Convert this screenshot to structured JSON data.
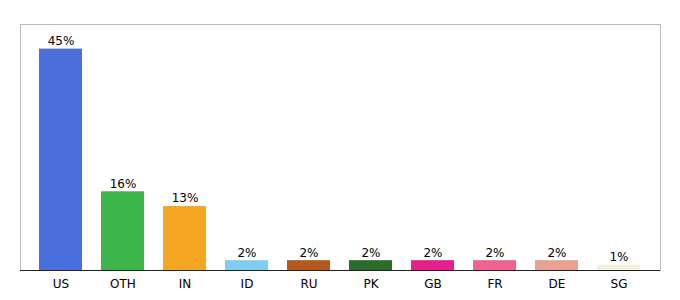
{
  "chart_data": {
    "type": "bar",
    "categories": [
      "US",
      "OTH",
      "IN",
      "ID",
      "RU",
      "PK",
      "GB",
      "FR",
      "DE",
      "SG"
    ],
    "values": [
      45,
      16,
      13,
      2,
      2,
      2,
      2,
      2,
      2,
      1
    ],
    "value_labels": [
      "45%",
      "16%",
      "13%",
      "2%",
      "2%",
      "2%",
      "2%",
      "2%",
      "2%",
      "1%"
    ],
    "colors": [
      "#4a6fdc",
      "#3cb54a",
      "#f5a623",
      "#7ecef4",
      "#b5581c",
      "#2a6e2a",
      "#e91e8c",
      "#f06292",
      "#e8a090",
      "#f5f0dc"
    ],
    "ylim": [
      0,
      50
    ],
    "data_labels": true,
    "tick_labels": "x",
    "grid": false
  }
}
